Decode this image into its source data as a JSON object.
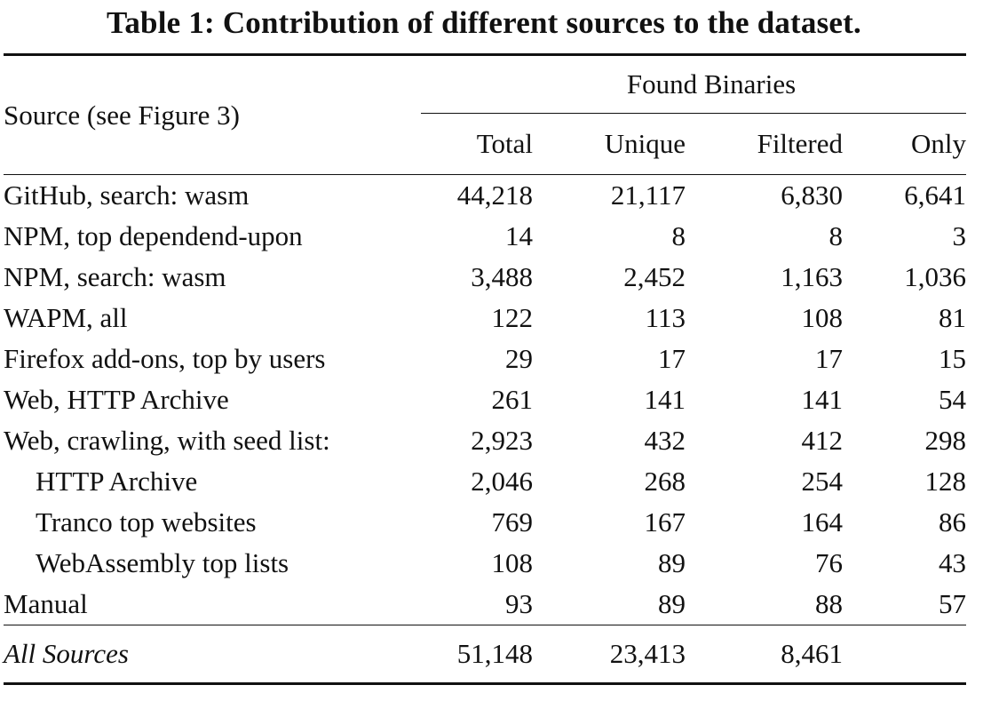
{
  "caption": "Table 1: Contribution of different sources to the dataset.",
  "table": {
    "source_header": "Source (see Figure 3)",
    "group_header": "Found Binaries",
    "columns": [
      "Total",
      "Unique",
      "Filtered",
      "Only"
    ],
    "rows": [
      {
        "source": "GitHub, search: wasm",
        "total": "44,218",
        "unique": "21,117",
        "filtered": "6,830",
        "only": "6,641"
      },
      {
        "source": "NPM, top dependend-upon",
        "total": "14",
        "unique": "8",
        "filtered": "8",
        "only": "3"
      },
      {
        "source": "NPM, search: wasm",
        "total": "3,488",
        "unique": "2,452",
        "filtered": "1,163",
        "only": "1,036"
      },
      {
        "source": "WAPM, all",
        "total": "122",
        "unique": "113",
        "filtered": "108",
        "only": "81"
      },
      {
        "source": "Firefox add-ons, top by users",
        "total": "29",
        "unique": "17",
        "filtered": "17",
        "only": "15"
      },
      {
        "source": "Web, HTTP Archive",
        "total": "261",
        "unique": "141",
        "filtered": "141",
        "only": "54"
      },
      {
        "source": "Web, crawling, with seed list:",
        "total": "2,923",
        "unique": "432",
        "filtered": "412",
        "only": "298"
      },
      {
        "source": "HTTP Archive",
        "total": "2,046",
        "unique": "268",
        "filtered": "254",
        "only": "128"
      },
      {
        "source": "Tranco top websites",
        "total": "769",
        "unique": "167",
        "filtered": "164",
        "only": "86"
      },
      {
        "source": "WebAssembly top lists",
        "total": "108",
        "unique": "89",
        "filtered": "76",
        "only": "43"
      },
      {
        "source": "Manual",
        "total": "93",
        "unique": "89",
        "filtered": "88",
        "only": "57"
      }
    ],
    "total_row": {
      "source": "All Sources",
      "total": "51,148",
      "unique": "23,413",
      "filtered": "8,461",
      "only": ""
    }
  }
}
